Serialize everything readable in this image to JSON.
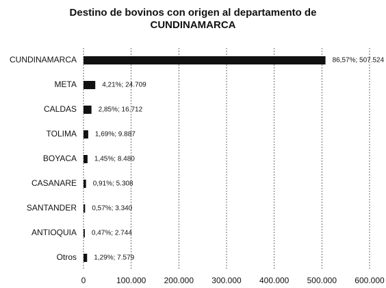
{
  "chart_data": {
    "type": "hbar",
    "title": "Destino de bovinos con origen al departamento de\nCUNDINAMARCA",
    "categories": [
      "CUNDINAMARCA",
      "META",
      "CALDAS",
      "TOLIMA",
      "BOYACA",
      "CASANARE",
      "SANTANDER",
      "ANTIOQUIA",
      "Otros"
    ],
    "values": [
      507524,
      24709,
      16712,
      9887,
      8480,
      5308,
      3340,
      2744,
      7579
    ],
    "value_labels": [
      "86,57%; 507.524",
      "4,21%; 24.709",
      "2,85%; 16.712",
      "1,69%; 9.887",
      "1,45%; 8.480",
      "0,91%; 5.308",
      "0,57%; 3.340",
      "0,47%; 2.744",
      "1,29%; 7.579"
    ],
    "color": "#111111",
    "xlim": [
      0,
      600000
    ],
    "xticks": [
      0,
      {
        "value": 100000,
        "label": "100.000"
      },
      {
        "value": 200000,
        "label": "200.000"
      },
      {
        "value": 300000,
        "label": "300.000"
      },
      {
        "value": 400000,
        "label": "400.000"
      },
      {
        "value": 500000,
        "label": "500.000"
      },
      {
        "value": 600000,
        "label": "600.000"
      }
    ],
    "grid": true
  }
}
